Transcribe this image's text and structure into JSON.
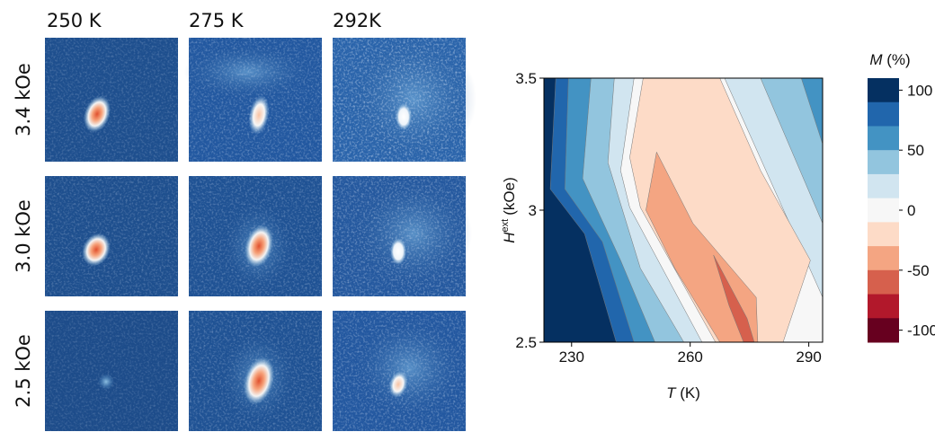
{
  "images": {
    "columns": [
      "250 K",
      "275 K",
      "292K"
    ],
    "rows": [
      "3.4 kOe",
      "3.0 kOe",
      "2.5 kOe"
    ]
  },
  "chart_data": {
    "type": "contour",
    "xlabel": {
      "symbol": "T",
      "unit": "(K)"
    },
    "ylabel": {
      "symbol": "H",
      "superscript": "ext",
      "unit": "(kOe)"
    },
    "xlim": [
      223,
      293.5
    ],
    "xticks": [
      230,
      260,
      290
    ],
    "ylim": [
      2.5,
      3.5
    ],
    "yticks": [
      2.5,
      3,
      3.5
    ],
    "colorbar": {
      "symbol": "M",
      "unit": "(%)",
      "lim": [
        -110,
        110
      ],
      "ticks": [
        100,
        50,
        0,
        -50,
        -100
      ],
      "levels": [
        100,
        80,
        60,
        40,
        20,
        0,
        -20,
        -40,
        -60,
        -80,
        -100
      ],
      "colors": [
        "#053061",
        "#2166ac",
        "#4393c3",
        "#92c5de",
        "#d1e5f0",
        "#f7f7f7",
        "#fddbc7",
        "#f4a582",
        "#d6604d",
        "#b2182b",
        "#67001f"
      ]
    },
    "regions": [
      {
        "level": 100,
        "points": [
          [
            223,
            3.5
          ],
          [
            293.5,
            3.5
          ],
          [
            293.5,
            2.5
          ],
          [
            223,
            2.5
          ]
        ]
      },
      {
        "level": 80,
        "points": [
          [
            226,
            3.5
          ],
          [
            293.5,
            3.5
          ],
          [
            293.5,
            2.5
          ],
          [
            241.3,
            2.5
          ],
          [
            233.3,
            2.91
          ],
          [
            224.6,
            3.08
          ]
        ]
      },
      {
        "level": 60,
        "points": [
          [
            229.2,
            3.5
          ],
          [
            293.5,
            3.5
          ],
          [
            293.5,
            2.5
          ],
          [
            245.8,
            2.5
          ],
          [
            237.8,
            2.88
          ],
          [
            228.3,
            3.08
          ]
        ]
      },
      {
        "level": 40,
        "points": [
          [
            234.9,
            3.5
          ],
          [
            288.1,
            3.5
          ],
          [
            293.5,
            3.25
          ],
          [
            293.5,
            2.5
          ],
          [
            251.1,
            2.5
          ],
          [
            242.4,
            2.81
          ],
          [
            232.8,
            3.12
          ]
        ]
      },
      {
        "level": 20,
        "points": [
          [
            240.8,
            3.5
          ],
          [
            277.8,
            3.5
          ],
          [
            293.5,
            2.95
          ],
          [
            293.5,
            2.5
          ],
          [
            258.4,
            2.5
          ],
          [
            247.4,
            2.78
          ],
          [
            239.2,
            3.18
          ]
        ]
      },
      {
        "level": 0,
        "points": [
          [
            245.8,
            3.5
          ],
          [
            268.7,
            3.5
          ],
          [
            293.5,
            2.67
          ],
          [
            293.5,
            2.5
          ],
          [
            263,
            2.5
          ],
          [
            244.7,
            3.01
          ],
          [
            242.4,
            3.15
          ]
        ]
      },
      {
        "level": -20,
        "points": [
          [
            248.1,
            3.5
          ],
          [
            267.5,
            3.5
          ],
          [
            277.8,
            3.15
          ],
          [
            290.4,
            2.81
          ],
          [
            283.5,
            2.5
          ],
          [
            266.4,
            2.5
          ],
          [
            247.4,
            3.01
          ],
          [
            244.7,
            3.2
          ]
        ]
      },
      {
        "level": -40,
        "points": [
          [
            248.8,
            3.0
          ],
          [
            251.5,
            3.22
          ],
          [
            260.7,
            2.95
          ],
          [
            276.7,
            2.67
          ],
          [
            277.1,
            2.5
          ],
          [
            267.5,
            2.5
          ],
          [
            256.1,
            2.78
          ]
        ]
      },
      {
        "level": -60,
        "points": [
          [
            265.9,
            2.83
          ],
          [
            274.4,
            2.59
          ],
          [
            276.2,
            2.5
          ],
          [
            273.5,
            2.5
          ],
          [
            269.8,
            2.64
          ]
        ]
      }
    ]
  }
}
